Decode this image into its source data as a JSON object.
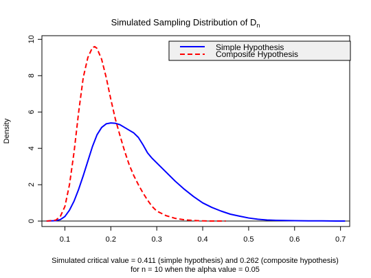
{
  "chart_data": {
    "type": "line",
    "title": "Simulated Sampling Distribution of D",
    "title_subscript": "n",
    "xlabel_line1": "Simulated critical value = 0.411 (simple hypothesis) and  0.262 (composite hypothesis)",
    "xlabel_line2": "for n = 10 when the alpha value = 0.05",
    "ylabel": "Density",
    "xlim": [
      0.05,
      0.72
    ],
    "ylim": [
      -0.3,
      10.2
    ],
    "x_ticks": [
      0.1,
      0.2,
      0.3,
      0.4,
      0.5,
      0.6,
      0.7
    ],
    "x_tick_labels": [
      "0.1",
      "0.2",
      "0.3",
      "0.4",
      "0.5",
      "0.6",
      "0.7"
    ],
    "y_ticks": [
      0,
      2,
      4,
      6,
      8,
      10
    ],
    "y_tick_labels": [
      "0",
      "2",
      "4",
      "6",
      "8",
      "10"
    ],
    "reference_line_y": 0,
    "grid": false,
    "legend_position": "top-right",
    "series": [
      {
        "name": "Simple Hypothesis",
        "color": "#0000ff",
        "dash": "solid",
        "x": [
          0.06,
          0.08,
          0.09,
          0.1,
          0.11,
          0.12,
          0.13,
          0.14,
          0.15,
          0.16,
          0.17,
          0.18,
          0.19,
          0.2,
          0.21,
          0.22,
          0.23,
          0.24,
          0.25,
          0.26,
          0.27,
          0.28,
          0.29,
          0.3,
          0.32,
          0.34,
          0.36,
          0.38,
          0.4,
          0.42,
          0.44,
          0.46,
          0.48,
          0.5,
          0.52,
          0.54,
          0.56,
          0.58,
          0.6,
          0.63,
          0.66,
          0.69,
          0.71
        ],
        "y": [
          0.0,
          0.02,
          0.08,
          0.25,
          0.6,
          1.1,
          1.75,
          2.5,
          3.3,
          4.1,
          4.75,
          5.15,
          5.35,
          5.4,
          5.38,
          5.3,
          5.15,
          5.0,
          4.85,
          4.6,
          4.2,
          3.75,
          3.45,
          3.2,
          2.7,
          2.2,
          1.75,
          1.35,
          1.0,
          0.75,
          0.55,
          0.38,
          0.27,
          0.17,
          0.1,
          0.06,
          0.04,
          0.03,
          0.02,
          0.01,
          0.01,
          0.0,
          0.0
        ]
      },
      {
        "name": "Composite Hypothesis",
        "color": "#ff0000",
        "dash": "dashed",
        "x": [
          0.06,
          0.08,
          0.09,
          0.1,
          0.11,
          0.12,
          0.13,
          0.14,
          0.15,
          0.16,
          0.165,
          0.17,
          0.18,
          0.19,
          0.2,
          0.21,
          0.22,
          0.23,
          0.24,
          0.25,
          0.26,
          0.27,
          0.28,
          0.29,
          0.3,
          0.32,
          0.34,
          0.36,
          0.38,
          0.4,
          0.42,
          0.45
        ],
        "y": [
          0.0,
          0.05,
          0.25,
          0.8,
          2.0,
          3.8,
          6.0,
          7.9,
          9.0,
          9.55,
          9.6,
          9.5,
          8.9,
          7.9,
          6.7,
          5.6,
          4.7,
          3.85,
          3.1,
          2.5,
          2.0,
          1.55,
          1.15,
          0.8,
          0.55,
          0.3,
          0.15,
          0.07,
          0.03,
          0.01,
          0.0,
          0.0
        ]
      }
    ]
  }
}
